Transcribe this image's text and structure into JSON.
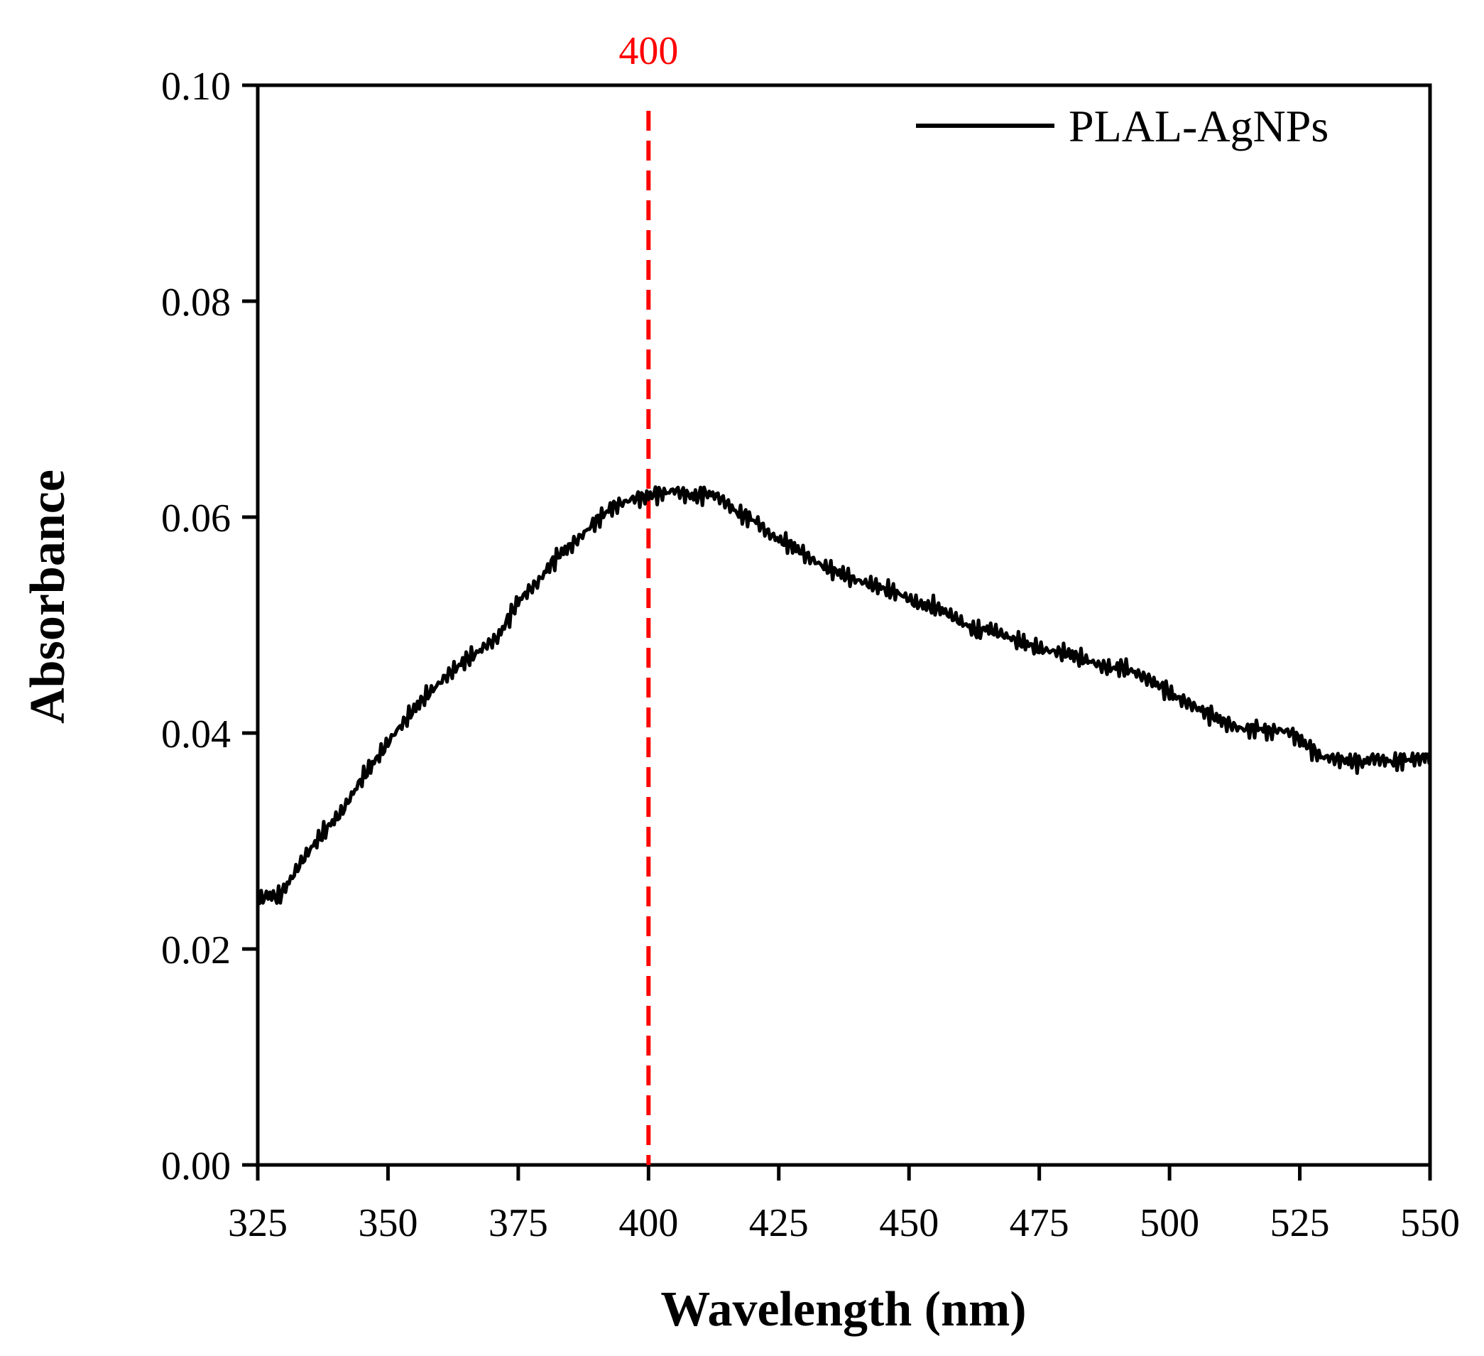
{
  "chart_data": {
    "type": "line",
    "title": "",
    "xlabel": "Wavelength (nm)",
    "ylabel": "Absorbance",
    "xlim": [
      325,
      550
    ],
    "ylim": [
      0.0,
      0.1
    ],
    "xticks": [
      325,
      350,
      375,
      400,
      425,
      450,
      475,
      500,
      525,
      550
    ],
    "xtick_labels": [
      "325",
      "350",
      "375",
      "400",
      "425",
      "450",
      "475",
      "500",
      "525",
      "550"
    ],
    "yticks": [
      0.0,
      0.02,
      0.04,
      0.06,
      0.08,
      0.1
    ],
    "ytick_labels": [
      "0.00",
      "0.02",
      "0.04",
      "0.06",
      "0.08",
      "0.10"
    ],
    "grid": false,
    "legend_position": "top-right",
    "reference_line": {
      "x": 400,
      "label": "400",
      "color": "#ff0000",
      "style": "dashed"
    },
    "series": [
      {
        "name": "PLAL-AgNPs",
        "color": "#000000",
        "x": [
          325,
          327,
          329,
          331,
          333,
          335,
          337,
          339,
          341,
          343,
          345,
          347,
          349,
          351,
          353,
          355,
          357,
          359,
          361,
          363,
          365,
          367,
          369,
          371,
          373,
          375,
          377,
          379,
          381,
          383,
          385,
          387,
          389,
          391,
          393,
          395,
          397,
          399,
          401,
          403,
          405,
          407,
          409,
          411,
          413,
          415,
          417,
          419,
          421,
          423,
          425,
          427,
          429,
          431,
          433,
          435,
          437,
          439,
          441,
          443,
          445,
          447,
          449,
          451,
          453,
          455,
          457,
          459,
          461,
          463,
          465,
          467,
          469,
          471,
          473,
          475,
          477,
          479,
          481,
          483,
          485,
          487,
          489,
          491,
          493,
          495,
          497,
          499,
          501,
          503,
          505,
          507,
          509,
          511,
          513,
          515,
          517,
          519,
          521,
          523,
          525,
          527,
          529,
          531,
          533,
          535,
          537,
          539,
          541,
          543,
          545,
          547,
          549,
          550
        ],
        "y": [
          0.0245,
          0.025,
          0.0248,
          0.0262,
          0.0278,
          0.0292,
          0.0304,
          0.0316,
          0.0326,
          0.0342,
          0.0358,
          0.0371,
          0.0384,
          0.0398,
          0.041,
          0.0422,
          0.0433,
          0.0442,
          0.0452,
          0.046,
          0.0468,
          0.0474,
          0.0482,
          0.0488,
          0.0505,
          0.0522,
          0.0532,
          0.0541,
          0.0555,
          0.0566,
          0.0573,
          0.0582,
          0.0592,
          0.0601,
          0.0609,
          0.0613,
          0.0617,
          0.0618,
          0.0621,
          0.0622,
          0.0625,
          0.0621,
          0.0619,
          0.0622,
          0.062,
          0.0613,
          0.0604,
          0.06,
          0.0595,
          0.0585,
          0.0579,
          0.0575,
          0.0569,
          0.0562,
          0.0556,
          0.0551,
          0.0548,
          0.0543,
          0.054,
          0.0537,
          0.0534,
          0.0531,
          0.0527,
          0.0521,
          0.0518,
          0.0517,
          0.0512,
          0.0506,
          0.05,
          0.0494,
          0.0497,
          0.0493,
          0.0489,
          0.0485,
          0.0482,
          0.0478,
          0.0476,
          0.0475,
          0.0473,
          0.0469,
          0.0466,
          0.0462,
          0.046,
          0.0461,
          0.0457,
          0.0452,
          0.0447,
          0.0441,
          0.0434,
          0.0429,
          0.0424,
          0.0419,
          0.0414,
          0.0409,
          0.0405,
          0.0403,
          0.0405,
          0.0401,
          0.0403,
          0.0401,
          0.0394,
          0.0386,
          0.0378,
          0.0377,
          0.0375,
          0.0374,
          0.0372,
          0.0377,
          0.0375,
          0.0373,
          0.0375,
          0.0376,
          0.0377,
          0.0378
        ]
      }
    ]
  }
}
